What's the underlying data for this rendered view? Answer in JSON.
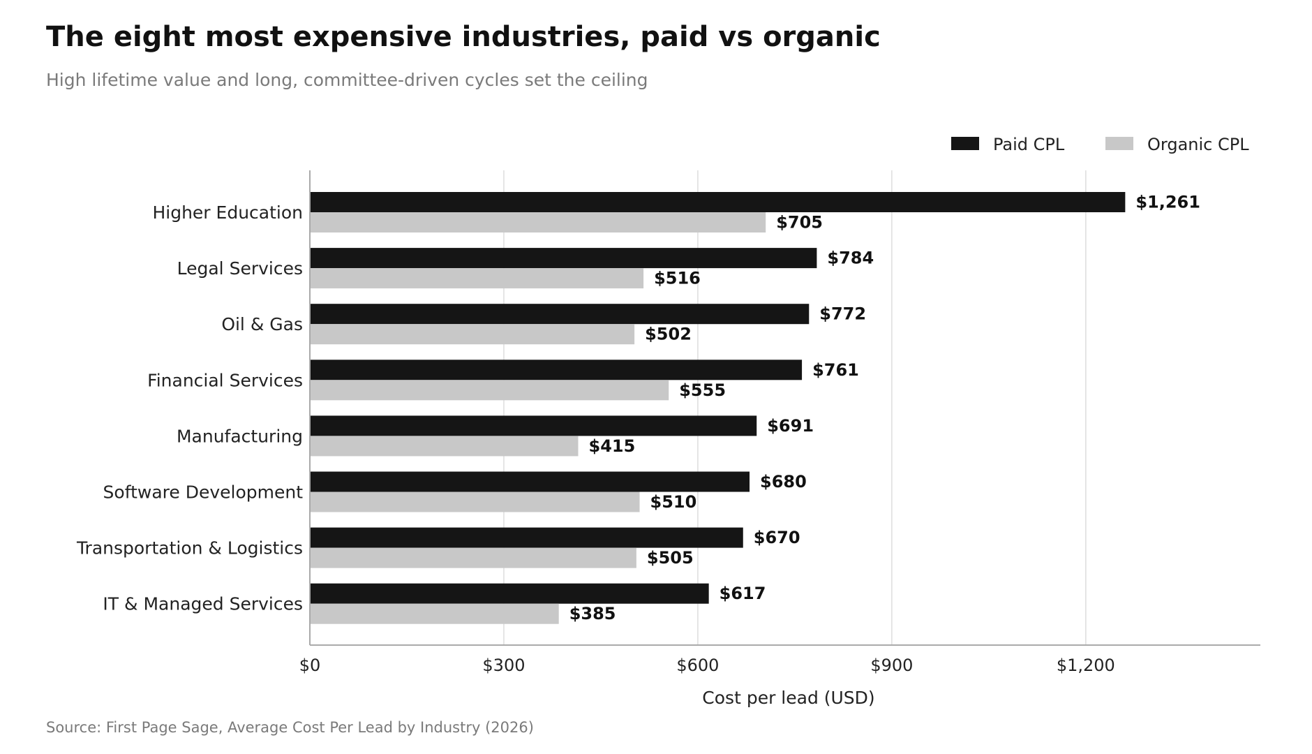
{
  "header": {
    "title": "The eight most expensive industries, paid vs organic",
    "subtitle": "High lifetime value and long, committee-driven cycles set the ceiling"
  },
  "footer": {
    "source": "Source: First Page Sage, Average Cost Per Lead by Industry (2026)"
  },
  "colors": {
    "paid": "#151515",
    "organic": "#c8c8c8",
    "grid": "#dddddd",
    "axis": "#aaaaaa",
    "text": "#222222"
  },
  "chart_data": {
    "type": "bar",
    "orientation": "horizontal",
    "categories": [
      "Higher Education",
      "Legal Services",
      "Oil & Gas",
      "Financial Services",
      "Manufacturing",
      "Software Development",
      "Transportation & Logistics",
      "IT & Managed Services"
    ],
    "series": [
      {
        "name": "Paid CPL",
        "values": [
          1261,
          784,
          772,
          761,
          691,
          680,
          670,
          617
        ],
        "labels": [
          "$1,261",
          "$784",
          "$772",
          "$761",
          "$691",
          "$680",
          "$670",
          "$617"
        ]
      },
      {
        "name": "Organic CPL",
        "values": [
          705,
          516,
          502,
          555,
          415,
          510,
          505,
          385
        ],
        "labels": [
          "$705",
          "$516",
          "$502",
          "$555",
          "$415",
          "$510",
          "$505",
          "$385"
        ]
      }
    ],
    "xlabel": "Cost per lead (USD)",
    "ylabel": "",
    "xlim": [
      0,
      1470
    ],
    "xticks": [
      0,
      300,
      600,
      900,
      1200
    ],
    "xtick_labels": [
      "$0",
      "$300",
      "$600",
      "$900",
      "$1,200"
    ],
    "grid": "vertical",
    "legend_position": "top-right"
  }
}
